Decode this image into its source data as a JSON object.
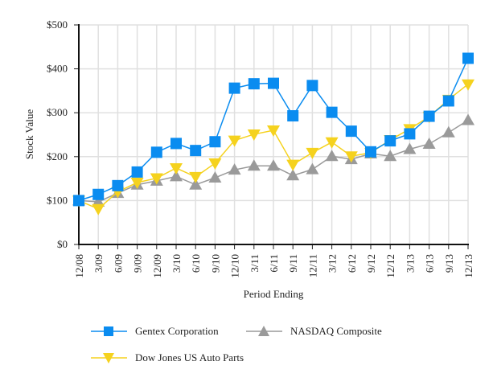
{
  "chart_data": {
    "type": "line",
    "title": "",
    "xlabel": "Period Ending",
    "ylabel": "Stock Value",
    "ylim": [
      0,
      500
    ],
    "yticks": [
      0,
      100,
      200,
      300,
      400,
      500
    ],
    "ytick_labels": [
      "$0",
      "$100",
      "$200",
      "$300",
      "$400",
      "$500"
    ],
    "grid": true,
    "legend_position": "bottom",
    "categories": [
      "12/08",
      "3/09",
      "6/09",
      "9/09",
      "12/09",
      "3/10",
      "6/10",
      "9/10",
      "12/10",
      "3/11",
      "6/11",
      "9/11",
      "12/11",
      "3/12",
      "6/12",
      "9/12",
      "12/12",
      "3/13",
      "6/13",
      "9/13",
      "12/13"
    ],
    "series": [
      {
        "name": "Gentex Corporation",
        "color": "#0a8cf0",
        "marker": "square",
        "values": [
          100,
          114,
          134,
          165,
          210,
          230,
          214,
          234,
          356,
          366,
          367,
          293,
          362,
          301,
          258,
          211,
          236,
          252,
          292,
          327,
          424
        ]
      },
      {
        "name": "NASDAQ Composite",
        "color": "#9a9a9a",
        "marker": "triangle-up",
        "values": [
          100,
          97,
          117,
          136,
          145,
          155,
          136,
          152,
          170,
          179,
          179,
          157,
          171,
          201,
          194,
          207,
          201,
          217,
          229,
          255,
          283
        ]
      },
      {
        "name": "Dow Jones US Auto Parts",
        "color": "#f5d21e",
        "marker": "triangle-down",
        "values": [
          100,
          81,
          120,
          141,
          151,
          174,
          154,
          185,
          237,
          251,
          260,
          182,
          209,
          233,
          201,
          209,
          238,
          263,
          291,
          330,
          365
        ]
      }
    ]
  }
}
